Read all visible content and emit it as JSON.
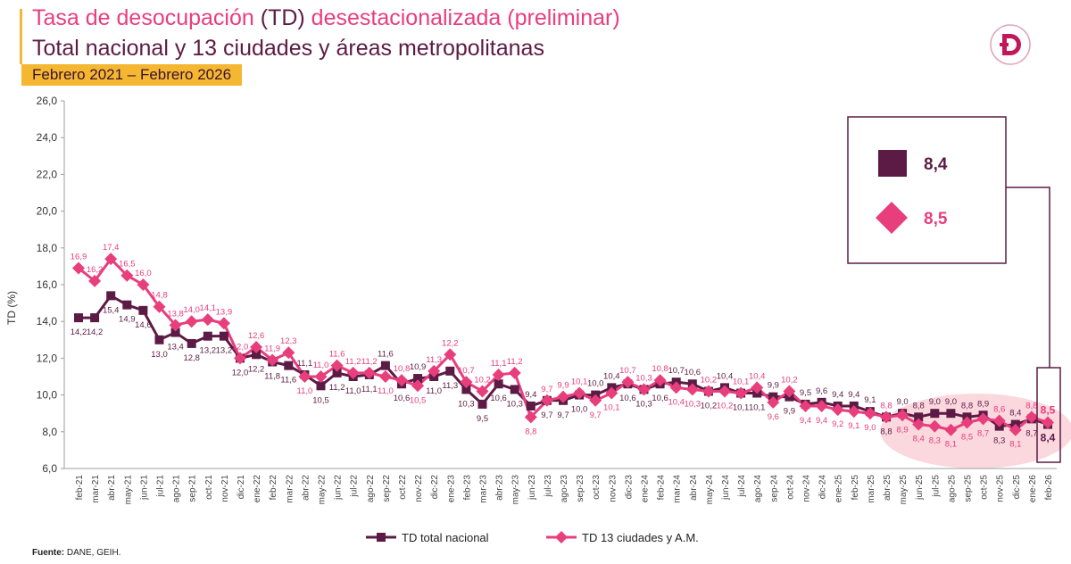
{
  "header": {
    "title_part1": "Tasa de desocupación ",
    "title_part2": "(TD)",
    "title_part3": " desestacionalizada (preliminar)",
    "subtitle": "Total nacional y 13 ciudades y áreas metropolitanas",
    "period": "Febrero 2021 – Febrero 2026",
    "logo_icon": "dane-logo-icon"
  },
  "source": {
    "label": "Fuente:",
    "text": " DANE, GEIH."
  },
  "callout": {
    "national_value": "8,4",
    "cities_value": "8,5"
  },
  "colors": {
    "national": "#5c1b45",
    "cities": "#e83e7c",
    "highlight": "#f9c9d3",
    "accent": "#f5b731"
  },
  "chart_data": {
    "type": "line",
    "ylabel": "TD (%)",
    "xlabel": "",
    "ylim": [
      6.0,
      26.0
    ],
    "y_ticks": [
      "6,0",
      "8,0",
      "10,0",
      "12,0",
      "14,0",
      "16,0",
      "18,0",
      "20,0",
      "22,0",
      "24,0",
      "26,0"
    ],
    "grid": false,
    "legend_position": "bottom-center",
    "categories": [
      "feb-21",
      "mar-21",
      "abr-21",
      "may-21",
      "jun-21",
      "jul-21",
      "ago-21",
      "sep-21",
      "oct-21",
      "nov-21",
      "dic-21",
      "ene-22",
      "feb-22",
      "mar-22",
      "abr-22",
      "may-22",
      "jun-22",
      "jul-22",
      "ago-22",
      "sep-22",
      "oct-22",
      "nov-22",
      "dic-22",
      "ene-23",
      "feb-23",
      "mar-23",
      "abr-23",
      "may-23",
      "jun-23",
      "jul-23",
      "ago-23",
      "sep-23",
      "oct-23",
      "nov-23",
      "dic-23",
      "ene-24",
      "feb-24",
      "mar-24",
      "abr-24",
      "may-24",
      "jun-24",
      "jul-24",
      "ago-24",
      "sep-24",
      "oct-24",
      "nov-24",
      "dic-24",
      "ene-25",
      "feb-25",
      "mar-25",
      "abr-25",
      "may-25",
      "jun-25",
      "jul-25",
      "ago-25",
      "sep-25",
      "oct-25",
      "nov-25",
      "dic-25",
      "ene-26",
      "feb-26"
    ],
    "series": [
      {
        "name": "TD total nacional",
        "marker": "square",
        "values": [
          14.2,
          14.2,
          15.4,
          14.9,
          14.6,
          13.0,
          13.4,
          12.8,
          13.2,
          13.2,
          12.0,
          12.2,
          11.8,
          11.6,
          11.1,
          10.5,
          11.2,
          11.0,
          11.1,
          11.6,
          10.6,
          10.9,
          11.0,
          11.3,
          10.3,
          9.5,
          10.6,
          10.3,
          9.4,
          9.7,
          9.7,
          10.0,
          10.0,
          10.4,
          10.6,
          10.3,
          10.6,
          10.7,
          10.6,
          10.2,
          10.4,
          10.1,
          10.1,
          9.9,
          9.9,
          9.5,
          9.6,
          9.4,
          9.4,
          9.1,
          8.8,
          9.0,
          8.8,
          9.0,
          9.0,
          8.8,
          8.9,
          8.3,
          8.4,
          8.7,
          8.4
        ],
        "labels": [
          "14,2",
          "14,2",
          "15,4",
          "14,9",
          "14,6",
          "13,0",
          "13,4",
          "12,8",
          "13,2",
          "13,2",
          "12,0",
          "12,2",
          "11,8",
          "11,6",
          "11,1",
          "10,5",
          "11,2",
          "11,0",
          "11,1",
          "11,6",
          "10,6",
          "10,9",
          "11,0",
          "11,3",
          "10,3",
          "9,5",
          "10,6",
          "10,3",
          "9,4",
          "9,7",
          "9,7",
          "10,0",
          "10,0",
          "10,4",
          "10,6",
          "10,3",
          "10,6",
          "10,7",
          "10,6",
          "10,2",
          "10,4",
          "10,1",
          "10,1",
          "9,9",
          "9,9",
          "9,5",
          "9,6",
          "9,4",
          "9,4",
          "9,1",
          "8,8",
          "9,0",
          "8,8",
          "9,0",
          "9,0",
          "8,8",
          "8,9",
          "8,3",
          "8,4",
          "8,7",
          "8,4"
        ]
      },
      {
        "name": "TD 13 ciudades y A.M.",
        "marker": "diamond",
        "values": [
          16.9,
          16.2,
          17.4,
          16.5,
          16.0,
          14.8,
          13.8,
          14.0,
          14.1,
          13.9,
          12.0,
          12.6,
          11.9,
          12.3,
          11.0,
          11.0,
          11.6,
          11.2,
          11.2,
          11.0,
          10.8,
          10.5,
          11.3,
          12.2,
          10.7,
          10.2,
          11.1,
          11.2,
          8.8,
          9.7,
          9.9,
          10.1,
          9.7,
          10.1,
          10.7,
          10.3,
          10.8,
          10.4,
          10.3,
          10.2,
          10.2,
          10.1,
          10.4,
          9.6,
          10.2,
          9.4,
          9.4,
          9.2,
          9.1,
          9.0,
          8.8,
          8.9,
          8.4,
          8.3,
          8.1,
          8.5,
          8.7,
          8.6,
          8.1,
          8.8,
          8.5
        ],
        "labels": [
          "16,9",
          "16,2",
          "17,4",
          "16,5",
          "16,0",
          "14,8",
          "13,8",
          "14,0",
          "14,1",
          "13,9",
          "12,0",
          "12,6",
          "11,9",
          "12,3",
          "11,0",
          "11,0",
          "11,6",
          "11,2",
          "11,2",
          "11,0",
          "10,8",
          "10,5",
          "11,3",
          "12,2",
          "10,7",
          "10,2",
          "11,1",
          "11,2",
          "8,8",
          "9,7",
          "9,9",
          "10,1",
          "9,7",
          "10,1",
          "10,7",
          "10,3",
          "10,8",
          "10,4",
          "10,3",
          "10,2",
          "10,2",
          "10,1",
          "10,4",
          "9,6",
          "10,2",
          "9,4",
          "9,4",
          "9,2",
          "9,1",
          "9,0",
          "8,8",
          "8,9",
          "8,4",
          "8,3",
          "8,1",
          "8,5",
          "8,7",
          "8,6",
          "8,1",
          "8,8",
          "8,5"
        ]
      }
    ]
  }
}
